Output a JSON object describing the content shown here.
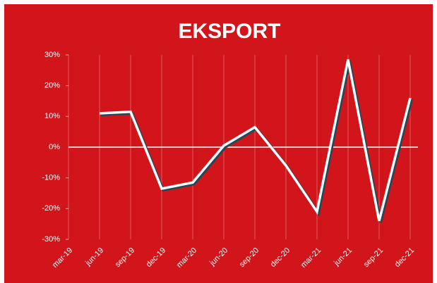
{
  "chart_data": {
    "type": "line",
    "title": "EKSPORT",
    "categories": [
      "mar-19",
      "jun-19",
      "sep-19",
      "dec-19",
      "mar-20",
      "jun-20",
      "sep-20",
      "dec-20",
      "mar-21",
      "jun-21",
      "sep-21",
      "dec-21"
    ],
    "series": [
      {
        "name": "Eksport",
        "color": "#ffffff",
        "values": [
          null,
          11,
          11.5,
          -13.5,
          -11.5,
          0.5,
          6.5,
          -6,
          -21,
          28.5,
          -24,
          16
        ]
      }
    ],
    "ylim": [
      -30,
      30
    ],
    "yticks": [
      {
        "value": -30,
        "label": "-30%"
      },
      {
        "value": -20,
        "label": "-20%"
      },
      {
        "value": -10,
        "label": "-10%"
      },
      {
        "value": 0,
        "label": "0%"
      },
      {
        "value": 10,
        "label": "10%"
      },
      {
        "value": 20,
        "label": "20%"
      },
      {
        "value": 30,
        "label": "30%"
      }
    ],
    "grid": true
  }
}
